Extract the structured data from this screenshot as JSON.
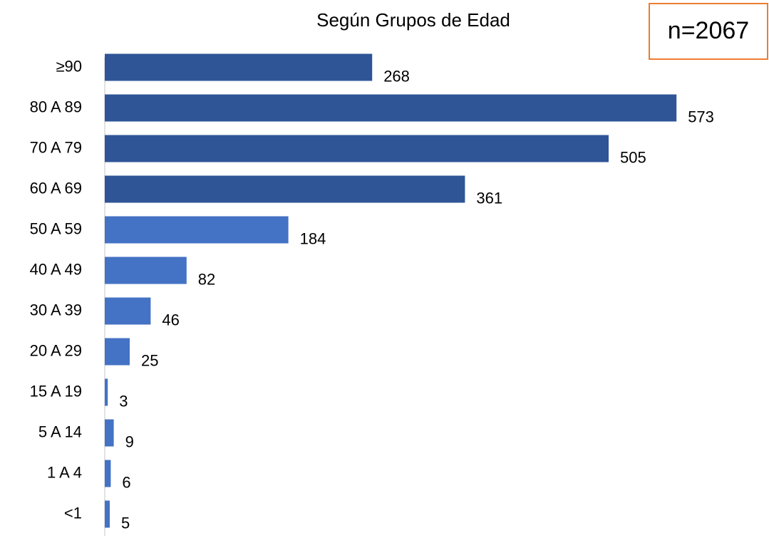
{
  "chart_data": {
    "type": "bar",
    "orientation": "horizontal",
    "title": "Según Grupos de Edad",
    "annotation": "n=2067",
    "categories": [
      "≥90",
      "80 A 89",
      "70 A 79",
      "60 A 69",
      "50 A 59",
      "40 A 49",
      "30 A 39",
      "20 A 29",
      "15 A 19",
      "5 A 14",
      "1 A 4",
      "<1"
    ],
    "values": [
      268,
      573,
      505,
      361,
      184,
      82,
      46,
      25,
      3,
      9,
      6,
      5
    ],
    "colors": [
      "#2f5597",
      "#2f5597",
      "#2f5597",
      "#2f5597",
      "#4472c4",
      "#4472c4",
      "#4472c4",
      "#4472c4",
      "#4472c4",
      "#4472c4",
      "#4472c4",
      "#4472c4"
    ],
    "annotation_border_color": "#ed7d31",
    "xlim": [
      0,
      600
    ]
  }
}
